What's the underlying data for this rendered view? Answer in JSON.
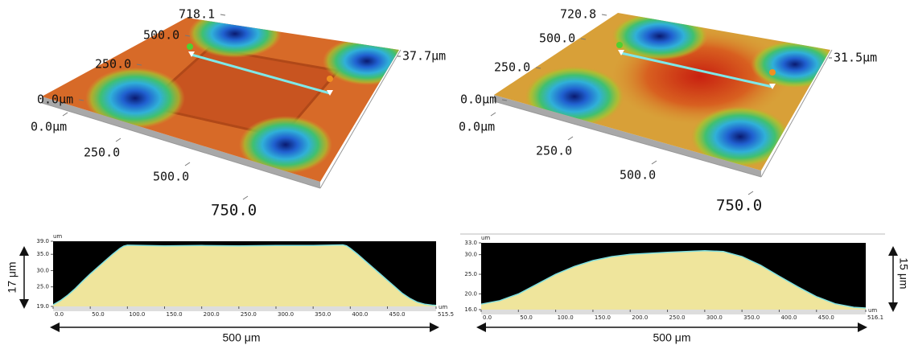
{
  "chart_data": [
    {
      "type": "surface",
      "yticks": [
        718.1,
        {
          "value": 500,
          "label": "500.0"
        },
        {
          "value": 250,
          "label": "250.0"
        },
        {
          "value": 0,
          "label": "0.0μm"
        }
      ],
      "xticks": [
        {
          "value": 0,
          "label": "0.0μm"
        },
        {
          "value": 250,
          "label": "250.0"
        },
        {
          "value": 500,
          "label": "500.0"
        },
        {
          "value": 750,
          "label": "750.0"
        }
      ],
      "zticks": [
        {
          "value": 37.7,
          "label": "37.7μm"
        }
      ]
    },
    {
      "type": "surface",
      "yticks": [
        720.8,
        {
          "value": 500,
          "label": "500.0"
        },
        {
          "value": 250,
          "label": "250.0"
        },
        {
          "value": 0,
          "label": "0.0μm"
        }
      ],
      "xticks": [
        {
          "value": 0,
          "label": "0.0μm"
        },
        {
          "value": 250,
          "label": "250.0"
        },
        {
          "value": 500,
          "label": "500.0"
        },
        {
          "value": 750,
          "label": "750.0"
        }
      ],
      "zticks": [
        {
          "value": 31.5,
          "label": "31.5μm"
        }
      ]
    },
    {
      "type": "area",
      "color": "#efe59c",
      "line_color": "#7fe0e0",
      "x_unit": "um",
      "y_unit": "um",
      "x": [
        0,
        10,
        20,
        30,
        40,
        50,
        60,
        70,
        80,
        90,
        95,
        100,
        150,
        200,
        250,
        300,
        350,
        390,
        395,
        400,
        410,
        420,
        430,
        440,
        450,
        460,
        470,
        480,
        490,
        500,
        510,
        515.5
      ],
      "values": [
        19.5,
        20.8,
        22.5,
        24.5,
        26.8,
        29,
        31,
        33,
        35,
        36.8,
        37.5,
        37.8,
        37.6,
        37.7,
        37.6,
        37.7,
        37.7,
        37.9,
        37.6,
        36.8,
        35,
        33,
        31,
        29,
        27,
        25,
        23,
        21.5,
        20.3,
        19.7,
        19.4,
        19.3
      ],
      "xlim": [
        0,
        515.5
      ],
      "ylim": [
        19,
        39
      ],
      "xticks": [
        {
          "value": 0,
          "label": "0.0"
        },
        {
          "value": 50,
          "label": "50.0"
        },
        {
          "value": 100,
          "label": "100.0"
        },
        {
          "value": 150,
          "label": "150.0"
        },
        {
          "value": 200,
          "label": "200.0"
        },
        {
          "value": 250,
          "label": "250.0"
        },
        {
          "value": 300,
          "label": "300.0"
        },
        {
          "value": 350,
          "label": "350.0"
        },
        {
          "value": 400,
          "label": "400.0"
        },
        {
          "value": 450,
          "label": "450.0"
        },
        515.5
      ],
      "yticks": [
        {
          "value": 19,
          "label": "19.0"
        },
        {
          "value": 25,
          "label": "25.0"
        },
        {
          "value": 30,
          "label": "30.0"
        },
        {
          "value": 35,
          "label": "35.0"
        },
        {
          "value": 39,
          "label": "39.0"
        }
      ],
      "annotations": [
        "17 μm",
        "500 μm"
      ]
    },
    {
      "type": "area",
      "color": "#efe59c",
      "line_color": "#7fe0e0",
      "x_unit": "um",
      "y_unit": "um",
      "x": [
        0,
        25,
        50,
        75,
        100,
        125,
        150,
        175,
        200,
        250,
        300,
        325,
        350,
        375,
        400,
        425,
        450,
        475,
        500,
        516.1
      ],
      "values": [
        17.4,
        18.3,
        20,
        22.5,
        25,
        27,
        28.5,
        29.5,
        30.1,
        30.6,
        31,
        30.8,
        29.5,
        27.3,
        24.5,
        21.8,
        19.3,
        17.5,
        16.6,
        16.4
      ],
      "xlim": [
        0,
        516.1
      ],
      "ylim": [
        16,
        33
      ],
      "xticks": [
        {
          "value": 0,
          "label": "0.0"
        },
        {
          "value": 50,
          "label": "50.0"
        },
        {
          "value": 100,
          "label": "100.0"
        },
        {
          "value": 150,
          "label": "150.0"
        },
        {
          "value": 200,
          "label": "200.0"
        },
        {
          "value": 250,
          "label": "250.0"
        },
        {
          "value": 300,
          "label": "300.0"
        },
        {
          "value": 350,
          "label": "350.0"
        },
        {
          "value": 400,
          "label": "400.0"
        },
        {
          "value": 450,
          "label": "450.0"
        },
        516.1
      ],
      "yticks": [
        {
          "value": 16,
          "label": "16.0"
        },
        {
          "value": 20,
          "label": "20.0"
        },
        {
          "value": 25,
          "label": "25.0"
        },
        {
          "value": 30,
          "label": "30.0"
        },
        {
          "value": 33,
          "label": "33.0"
        }
      ],
      "annotations": [
        "15 μm",
        "500 μm"
      ]
    }
  ]
}
